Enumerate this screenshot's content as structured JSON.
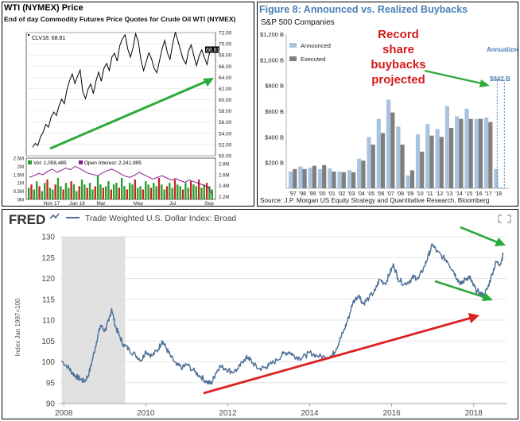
{
  "wti": {
    "title": "WTI (NYMEX) Price",
    "subtitle": "End of day Commodity Futures Price Quotes for Crude Oil WTI (NYMEX)",
    "symbol_label": "CLV18: 68.81",
    "last_price_tag": "68.81",
    "vol_label": "Vol: 1,058,485",
    "oi_label": "Open Interest: 2,241,995",
    "colors": {
      "price": "#000000",
      "up": "#2a9d2a",
      "down": "#cc2222",
      "oi": "#8b1a8b",
      "arrow": "#2eaa3c"
    }
  },
  "buybacks": {
    "title": "Figure 8: Announced vs. Realized Buybacks",
    "subtitle": "S&P 500 Companies",
    "legend_announced": "Announced",
    "legend_executed": "Executed",
    "annualized_label": "Annualized",
    "value_tag": "$842 B",
    "annotation": [
      "Record",
      "share",
      "buybacks",
      "projected"
    ],
    "source": "Source: J.P. Morgan US Equity Strategy and Quantitative Research, Bloomberg",
    "colors": {
      "announced": "#a9c3de",
      "executed": "#7f7f7f",
      "title": "#4a7fb5",
      "annotation": "#d41a1a",
      "arrow": "#2eaa3c"
    }
  },
  "fred": {
    "logo": "FRED",
    "series_label": "Trade Weighted U.S. Dollar Index: Broad",
    "y_axis_title": "Index Jan 1997=100",
    "colors": {
      "line": "#4a6d96",
      "recession": "#e1e1e1",
      "grid": "#dcdcdc",
      "green_arrow": "#2eaa3c",
      "red_arrow": "#dd2020"
    }
  },
  "chart_data": [
    {
      "type": "line",
      "title": "WTI (NYMEX) Price",
      "x_ticks": [
        "Nov 17",
        "Jan 18",
        "Mar",
        "May",
        "Jul",
        "Sep"
      ],
      "y_ticks": [
        "72.00",
        "70.00",
        "68.00",
        "66.00",
        "64.00",
        "62.00",
        "60.00",
        "58.00",
        "56.00",
        "54.00",
        "52.00",
        "50.00"
      ],
      "ylim": [
        50,
        72
      ],
      "series": [
        {
          "values": [
            51.5,
            52.2,
            51.8,
            53.4,
            54.2,
            55.6,
            55.1,
            56.9,
            57.8,
            57.2,
            58.9,
            60.1,
            59.3,
            61.8,
            63.4,
            64.6,
            62.9,
            64.2,
            65.3,
            61.4,
            60.2,
            61.9,
            62.8,
            61.1,
            63.4,
            64.9,
            63.3,
            65.6,
            66.5,
            65.2,
            67.6,
            68.3,
            66.9,
            69.7,
            70.9,
            71.6,
            69.1,
            67.6,
            69.3,
            71.8,
            70.4,
            67.1,
            65.2,
            66.8,
            68.4,
            67.3,
            65.6,
            64.8,
            66.9,
            69.1,
            70.6,
            68.4,
            67.2,
            69.9,
            72.1,
            70.5,
            68.8,
            67.2,
            66.4,
            68.7,
            69.8,
            67.9,
            66.1,
            67.8,
            68.9,
            67.6,
            66.3,
            68.5,
            68.81
          ]
        }
      ]
    },
    {
      "type": "bar",
      "title": "WTI volume and open interest",
      "y_ticks_left": [
        "2.5M",
        "2M",
        "1.5M",
        "1M",
        "0.5M",
        "0M"
      ],
      "y_ticks_right": [
        "2.8M",
        "2.6M",
        "2.4M",
        "2.2M"
      ],
      "ylim_volume": [
        0,
        2.5
      ],
      "ylim_open_interest": [
        2.15,
        2.9
      ],
      "series": [
        {
          "name": "Vol: 1,058,485",
          "values": [
            0.7,
            0.9,
            0.6,
            1.1,
            0.8,
            0.5,
            1.0,
            1.2,
            0.7,
            0.6,
            0.9,
            1.3,
            0.8,
            0.6,
            1.0,
            0.7,
            1.1,
            0.9,
            0.5,
            0.8,
            1.2,
            0.9,
            0.7,
            1.0,
            0.6,
            0.8,
            1.4,
            0.9,
            0.7,
            0.8,
            1.1,
            0.6,
            0.9,
            1.0,
            0.7,
            1.3,
            0.8,
            0.6,
            1.0,
            0.9,
            1.2,
            0.7,
            0.8,
            0.6,
            1.1,
            0.9,
            0.7,
            1.0,
            0.8,
            1.3,
            0.9,
            0.6,
            0.8,
            1.0,
            0.7,
            1.2,
            0.9,
            0.8,
            0.6,
            1.0,
            0.7,
            1.1,
            0.9,
            0.8,
            1.2,
            0.7,
            0.9,
            1.0,
            0.8,
            0.6
          ]
        },
        {
          "name": "Open Interest: 2,241,995",
          "values": [
            2.55,
            2.58,
            2.62,
            2.6,
            2.66,
            2.7,
            2.64,
            2.68,
            2.72,
            2.69,
            2.75,
            2.71,
            2.66,
            2.62,
            2.6,
            2.58,
            2.63,
            2.67,
            2.7,
            2.66,
            2.61,
            2.57,
            2.55,
            2.59,
            2.64,
            2.6,
            2.56,
            2.52,
            2.55,
            2.58,
            2.54,
            2.5,
            2.53,
            2.49,
            2.46,
            2.5,
            2.47,
            2.44,
            2.41,
            2.38,
            2.24
          ]
        }
      ]
    },
    {
      "type": "bar",
      "title": "Figure 8: Announced vs. Realized Buybacks",
      "subtitle": "S&P 500 Companies",
      "categories": [
        "'97",
        "'98",
        "'99",
        "'00",
        "'01",
        "'02",
        "'03",
        "'04",
        "'05",
        "'06",
        "'07",
        "'08",
        "'09",
        "'10",
        "'11",
        "'12",
        "'13",
        "'14",
        "'15",
        "'16",
        "'17",
        "'18"
      ],
      "y_ticks": [
        "$1,200 B",
        "$1,000 B",
        "$800 B",
        "$600 B",
        "$400 B",
        "$200 B"
      ],
      "ylim": [
        0,
        1200
      ],
      "series": [
        {
          "name": "Announced",
          "values": [
            130,
            170,
            160,
            150,
            155,
            130,
            140,
            230,
            400,
            540,
            690,
            480,
            100,
            420,
            500,
            460,
            640,
            560,
            620,
            540,
            550,
            150
          ]
        },
        {
          "name": "Executed",
          "values": [
            150,
            150,
            175,
            180,
            130,
            125,
            125,
            215,
            340,
            430,
            590,
            340,
            140,
            285,
            410,
            400,
            470,
            540,
            540,
            540,
            515,
            842
          ]
        }
      ],
      "annotations": [
        "$842 B",
        "Annualized"
      ]
    },
    {
      "type": "line",
      "title": "Trade Weighted U.S. Dollar Index: Broad",
      "ylabel": "Index Jan 1997=100",
      "x_ticks": [
        "2008",
        "2010",
        "2012",
        "2014",
        "2016",
        "2018"
      ],
      "y_ticks": [
        "130",
        "125",
        "120",
        "115",
        "110",
        "105",
        "100",
        "95",
        "90"
      ],
      "xlim": [
        2007.9,
        2018.8
      ],
      "ylim": [
        90,
        130
      ],
      "recession_shading": [
        2007.95,
        2009.5
      ],
      "series": [
        {
          "points": [
            [
              2007.95,
              100.2
            ],
            [
              2008.1,
              98.8
            ],
            [
              2008.2,
              97.5
            ],
            [
              2008.3,
              96.5
            ],
            [
              2008.4,
              95.9
            ],
            [
              2008.5,
              95.3
            ],
            [
              2008.6,
              96.7
            ],
            [
              2008.7,
              100.5
            ],
            [
              2008.8,
              104.8
            ],
            [
              2008.9,
              108.8
            ],
            [
              2009.0,
              107.4
            ],
            [
              2009.1,
              109.8
            ],
            [
              2009.17,
              112.8
            ],
            [
              2009.25,
              108.8
            ],
            [
              2009.35,
              106.4
            ],
            [
              2009.45,
              104.2
            ],
            [
              2009.6,
              102.9
            ],
            [
              2009.75,
              101.6
            ],
            [
              2009.9,
              100.4
            ],
            [
              2010.0,
              102.6
            ],
            [
              2010.15,
              101.4
            ],
            [
              2010.3,
              102.9
            ],
            [
              2010.4,
              105.1
            ],
            [
              2010.5,
              103.3
            ],
            [
              2010.6,
              101.4
            ],
            [
              2010.75,
              99.2
            ],
            [
              2010.9,
              98.6
            ],
            [
              2011.0,
              99.4
            ],
            [
              2011.2,
              97.6
            ],
            [
              2011.35,
              96.4
            ],
            [
              2011.5,
              95.1
            ],
            [
              2011.6,
              94.8
            ],
            [
              2011.7,
              97.2
            ],
            [
              2011.8,
              98.9
            ],
            [
              2011.95,
              98.4
            ],
            [
              2012.1,
              97.6
            ],
            [
              2012.25,
              98.2
            ],
            [
              2012.4,
              100.6
            ],
            [
              2012.5,
              101.1
            ],
            [
              2012.6,
              99.8
            ],
            [
              2012.75,
              98.3
            ],
            [
              2012.9,
              98.6
            ],
            [
              2013.0,
              99.1
            ],
            [
              2013.2,
              100.4
            ],
            [
              2013.35,
              101.9
            ],
            [
              2013.5,
              102.4
            ],
            [
              2013.6,
              101.6
            ],
            [
              2013.75,
              100.9
            ],
            [
              2013.9,
              101.4
            ],
            [
              2014.0,
              102.2
            ],
            [
              2014.2,
              101.4
            ],
            [
              2014.4,
              101.1
            ],
            [
              2014.55,
              101.6
            ],
            [
              2014.65,
              103.2
            ],
            [
              2014.75,
              105.6
            ],
            [
              2014.85,
              107.9
            ],
            [
              2014.95,
              110.6
            ],
            [
              2015.05,
              114.2
            ],
            [
              2015.2,
              116.1
            ],
            [
              2015.3,
              113.9
            ],
            [
              2015.45,
              115.4
            ],
            [
              2015.6,
              117.1
            ],
            [
              2015.7,
              119.7
            ],
            [
              2015.85,
              118.8
            ],
            [
              2015.95,
              121.2
            ],
            [
              2016.05,
              123.3
            ],
            [
              2016.15,
              120.1
            ],
            [
              2016.3,
              118.6
            ],
            [
              2016.45,
              119.5
            ],
            [
              2016.55,
              120.4
            ],
            [
              2016.65,
              119.9
            ],
            [
              2016.8,
              122.9
            ],
            [
              2016.9,
              125.6
            ],
            [
              2017.0,
              128.2
            ],
            [
              2017.1,
              126.4
            ],
            [
              2017.25,
              125.1
            ],
            [
              2017.35,
              124.3
            ],
            [
              2017.5,
              121.9
            ],
            [
              2017.6,
              119.9
            ],
            [
              2017.7,
              118.6
            ],
            [
              2017.8,
              119.9
            ],
            [
              2017.9,
              120.4
            ],
            [
              2017.95,
              119.1
            ],
            [
              2018.05,
              117.3
            ],
            [
              2018.15,
              116.4
            ],
            [
              2018.25,
              115.9
            ],
            [
              2018.35,
              117.9
            ],
            [
              2018.45,
              121.2
            ],
            [
              2018.55,
              123.9
            ],
            [
              2018.65,
              123.5
            ],
            [
              2018.72,
              125.8
            ]
          ]
        }
      ]
    }
  ]
}
